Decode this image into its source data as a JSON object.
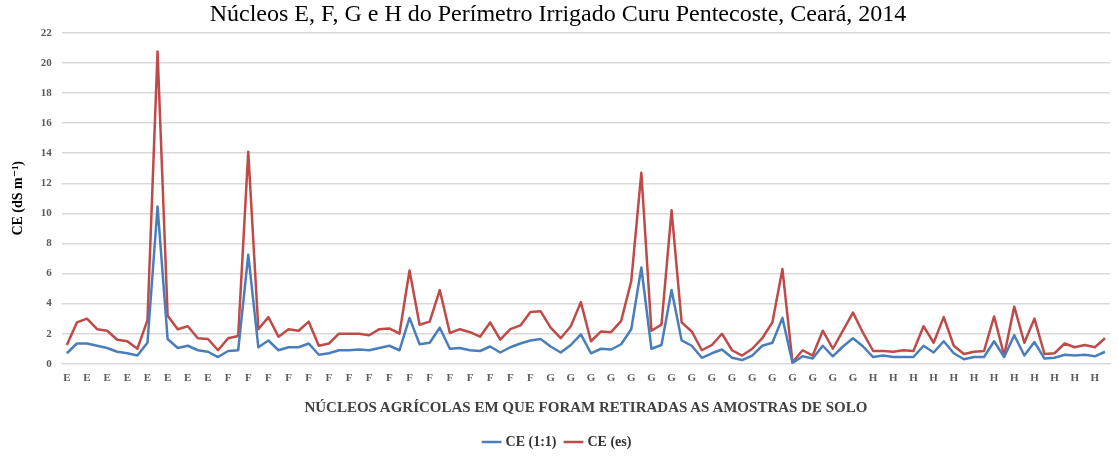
{
  "chart_data": {
    "type": "line",
    "title": "Núcleos E, F, G e H do Perímetro Irrigado Curu Pentecoste, Ceará, 2014",
    "xlabel": "NÚCLEOS AGRÍCOLAS EM QUE FORAM RETIRADAS AS AMOSTRAS DE SOLO",
    "ylabel": "CE (dS m⁻¹)",
    "categories": [
      "E",
      null,
      "E",
      null,
      "E",
      null,
      "E",
      null,
      "E",
      null,
      "E",
      null,
      "E",
      null,
      "E",
      null,
      "F",
      null,
      "F",
      null,
      "F",
      null,
      "F",
      null,
      "F",
      null,
      "F",
      null,
      "F",
      null,
      "F",
      null,
      "F",
      null,
      "F",
      null,
      "F",
      null,
      "F",
      null,
      "F",
      null,
      "F",
      null,
      "F",
      null,
      "F",
      null,
      "G",
      null,
      "G",
      null,
      "G",
      null,
      "G",
      null,
      "G",
      null,
      "G",
      null,
      "G",
      null,
      "G",
      null,
      "G",
      null,
      "G",
      null,
      "G",
      null,
      "G",
      null,
      "G",
      null,
      "G",
      null,
      "G",
      null,
      "G",
      null,
      "H",
      null,
      "H",
      null,
      "H",
      null,
      "H",
      null,
      "H",
      null,
      "H",
      null,
      "H",
      null,
      "H",
      null,
      "H",
      null,
      "H",
      null,
      "H",
      null,
      "H",
      null
    ],
    "series": [
      {
        "name": "CE (1:1)",
        "color": "#4a7ebb",
        "values": [
          0.7,
          1.35,
          1.35,
          1.2,
          1.05,
          0.8,
          0.7,
          0.55,
          1.4,
          10.45,
          1.65,
          1.05,
          1.2,
          0.9,
          0.8,
          0.45,
          0.85,
          0.9,
          7.25,
          1.1,
          1.55,
          0.9,
          1.1,
          1.1,
          1.35,
          0.6,
          0.7,
          0.9,
          0.9,
          0.95,
          0.9,
          1.05,
          1.2,
          0.9,
          3.05,
          1.3,
          1.4,
          2.4,
          1.0,
          1.05,
          0.9,
          0.85,
          1.15,
          0.75,
          1.1,
          1.35,
          1.55,
          1.65,
          1.15,
          0.75,
          1.25,
          1.95,
          0.7,
          1.0,
          0.95,
          1.3,
          2.3,
          6.4,
          1.0,
          1.25,
          4.9,
          1.55,
          1.2,
          0.4,
          0.7,
          0.95,
          0.4,
          0.25,
          0.55,
          1.2,
          1.4,
          3.05,
          0.05,
          0.5,
          0.35,
          1.2,
          0.5,
          1.15,
          1.7,
          1.15,
          0.45,
          0.55,
          0.45,
          0.45,
          0.45,
          1.2,
          0.75,
          1.5,
          0.7,
          0.3,
          0.45,
          0.45,
          1.5,
          0.45,
          1.9,
          0.55,
          1.45,
          0.35,
          0.4,
          0.6,
          0.55,
          0.6,
          0.5,
          0.8
        ]
      },
      {
        "name": "CE (es)",
        "color": "#be4b48",
        "values": [
          1.25,
          2.75,
          3.0,
          2.3,
          2.2,
          1.6,
          1.5,
          1.0,
          2.9,
          20.75,
          3.2,
          2.3,
          2.5,
          1.7,
          1.65,
          0.9,
          1.7,
          1.85,
          14.1,
          2.3,
          3.1,
          1.8,
          2.3,
          2.2,
          2.8,
          1.2,
          1.35,
          2.0,
          2.0,
          2.0,
          1.9,
          2.3,
          2.35,
          2.0,
          6.2,
          2.6,
          2.8,
          4.9,
          2.05,
          2.3,
          2.1,
          1.8,
          2.75,
          1.6,
          2.3,
          2.55,
          3.45,
          3.5,
          2.4,
          1.7,
          2.5,
          4.1,
          1.5,
          2.15,
          2.1,
          2.85,
          5.5,
          12.7,
          2.2,
          2.6,
          10.2,
          2.75,
          2.15,
          0.9,
          1.25,
          2.0,
          0.9,
          0.55,
          1.0,
          1.7,
          2.75,
          6.3,
          0.1,
          0.9,
          0.55,
          2.2,
          1.0,
          2.2,
          3.4,
          2.05,
          0.85,
          0.85,
          0.8,
          0.9,
          0.85,
          2.5,
          1.4,
          3.1,
          1.2,
          0.65,
          0.8,
          0.85,
          3.15,
          0.55,
          3.8,
          1.4,
          3.0,
          0.65,
          0.7,
          1.35,
          1.1,
          1.25,
          1.1,
          1.7
        ]
      }
    ],
    "ylim": [
      0,
      22
    ],
    "yticks": [
      0,
      2,
      4,
      6,
      8,
      10,
      12,
      14,
      16,
      18,
      20,
      22
    ],
    "grid": "y",
    "legend": "bottom",
    "marker": "none",
    "line_style": "solid"
  }
}
